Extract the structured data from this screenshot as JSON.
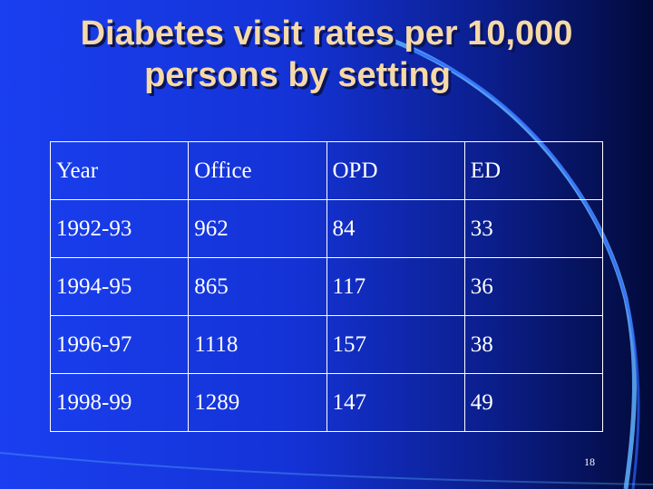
{
  "slide": {
    "title_line1": "Diabetes visit rates per 10,000",
    "title_line2": "persons by setting",
    "page_number": "18",
    "colors": {
      "background_start": "#1a3ff0",
      "background_end": "#020a3a",
      "title_text": "#f6d9a8",
      "table_text": "#ffffff",
      "curve_highlight": "#5fb4ff"
    }
  },
  "table": {
    "headers": [
      "Year",
      "Office",
      "OPD",
      "ED"
    ],
    "rows": [
      [
        "1992-93",
        "962",
        "84",
        "33"
      ],
      [
        "1994-95",
        "865",
        "117",
        "36"
      ],
      [
        "1996-97",
        "1118",
        "157",
        "38"
      ],
      [
        "1998-99",
        "1289",
        "147",
        "49"
      ]
    ]
  }
}
